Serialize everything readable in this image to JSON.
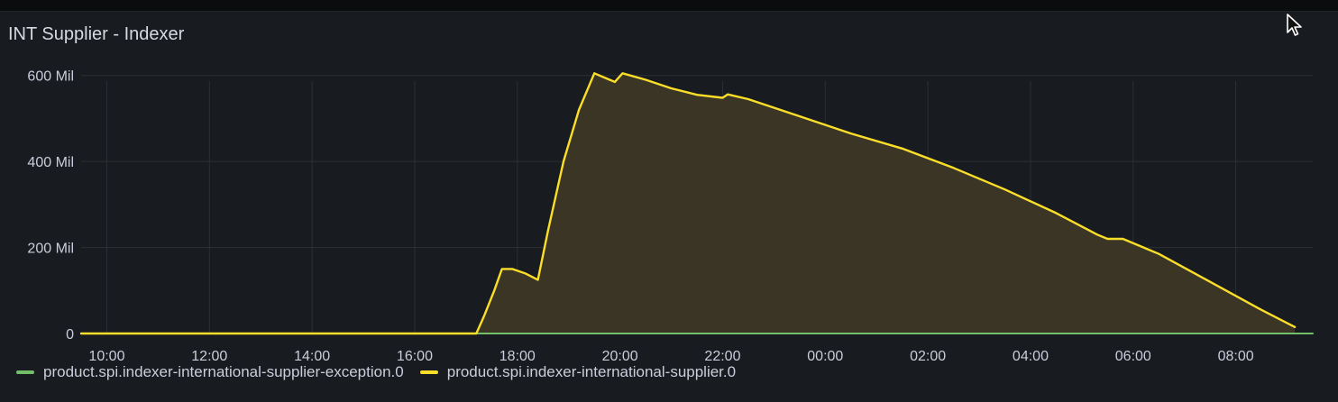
{
  "panel": {
    "title": "INT Supplier - Indexer"
  },
  "colors": {
    "exception": "#73bf69",
    "supplier": "#fade2a",
    "supplier_fill": "#3a3525",
    "grid": "#2c2f35",
    "tick": "#ccccdc"
  },
  "chart_data": {
    "type": "area",
    "title": "INT Supplier - Indexer",
    "xlabel": "",
    "ylabel": "",
    "x_unit": "hours elapsed from 09:30",
    "xlim": [
      0,
      24
    ],
    "ylim": [
      0,
      700
    ],
    "y_ticks": [
      {
        "value": 0,
        "label": "0"
      },
      {
        "value": 200,
        "label": "200 Mil"
      },
      {
        "value": 400,
        "label": "400 Mil"
      },
      {
        "value": 600,
        "label": "600 Mil"
      }
    ],
    "x_ticks": [
      {
        "value": 0.5,
        "label": "10:00"
      },
      {
        "value": 2.5,
        "label": "12:00"
      },
      {
        "value": 4.5,
        "label": "14:00"
      },
      {
        "value": 6.5,
        "label": "16:00"
      },
      {
        "value": 8.5,
        "label": "18:00"
      },
      {
        "value": 10.5,
        "label": "20:00"
      },
      {
        "value": 12.5,
        "label": "22:00"
      },
      {
        "value": 14.5,
        "label": "00:00"
      },
      {
        "value": 16.5,
        "label": "02:00"
      },
      {
        "value": 18.5,
        "label": "04:00"
      },
      {
        "value": 20.5,
        "label": "06:00"
      },
      {
        "value": 22.5,
        "label": "08:00"
      }
    ],
    "grid": true,
    "legend_placement": "bottom-left",
    "series": [
      {
        "name": "product.spi.indexer-international-supplier-exception.0",
        "color": "#73bf69",
        "x": [
          0,
          8,
          12,
          18,
          24
        ],
        "y": [
          0,
          0,
          0,
          0,
          0
        ]
      },
      {
        "name": "product.spi.indexer-international-supplier.0",
        "color": "#fade2a",
        "x": [
          0,
          7.7,
          7.85,
          8.05,
          8.2,
          8.4,
          8.65,
          8.9,
          9.1,
          9.4,
          9.7,
          10.0,
          10.2,
          10.4,
          10.55,
          11.0,
          11.5,
          12.0,
          12.5,
          12.6,
          13.0,
          14.0,
          15.0,
          16.0,
          17.0,
          18.0,
          19.0,
          19.8,
          20.0,
          20.3,
          21.0,
          22.0,
          23.0,
          23.65
        ],
        "y": [
          0,
          0,
          40,
          100,
          150,
          150,
          140,
          125,
          240,
          400,
          520,
          605,
          595,
          585,
          605,
          590,
          570,
          555,
          548,
          556,
          545,
          505,
          465,
          430,
          385,
          335,
          280,
          230,
          220,
          220,
          185,
          120,
          55,
          15
        ]
      }
    ]
  },
  "legend": {
    "items": [
      {
        "label": "product.spi.indexer-international-supplier-exception.0",
        "color": "#73bf69"
      },
      {
        "label": "product.spi.indexer-international-supplier.0",
        "color": "#fade2a"
      }
    ]
  }
}
